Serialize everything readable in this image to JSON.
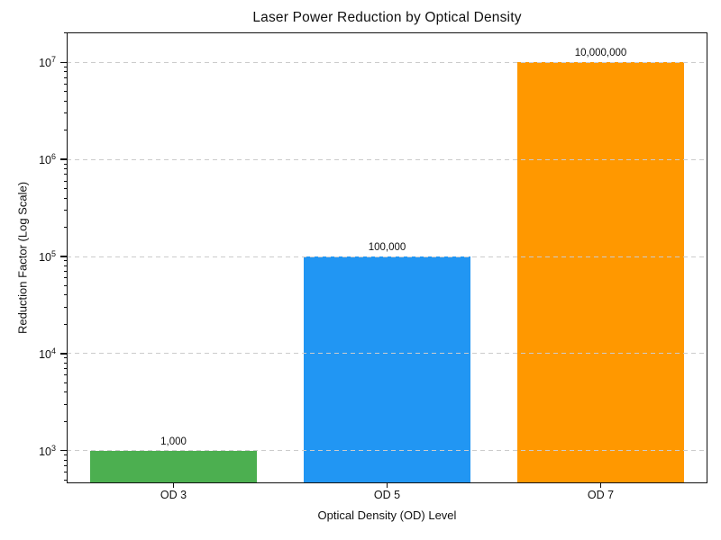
{
  "chart_data": {
    "type": "bar",
    "title": "Laser Power Reduction by Optical Density",
    "xlabel": "Optical Density (OD) Level",
    "ylabel": "Reduction Factor (Log Scale)",
    "categories": [
      "OD 3",
      "OD 5",
      "OD 7"
    ],
    "values": [
      1000,
      100000,
      10000000
    ],
    "value_labels": [
      "1,000",
      "100,000",
      "10,000,000"
    ],
    "bar_colors": [
      "#4caf50",
      "#2196f3",
      "#ff9800"
    ],
    "yscale": "log",
    "ylim": [
      460,
      20400000
    ],
    "yticks": [
      {
        "base": "10",
        "exp": "3",
        "value": 1000
      },
      {
        "base": "10",
        "exp": "4",
        "value": 10000
      },
      {
        "base": "10",
        "exp": "5",
        "value": 100000
      },
      {
        "base": "10",
        "exp": "6",
        "value": 1000000
      },
      {
        "base": "10",
        "exp": "7",
        "value": 10000000
      }
    ],
    "grid": "horizontal-dashed",
    "grid_color": "#cccccc",
    "axis_color": "#111111",
    "text_color": "#111111",
    "legend": "none",
    "bar_width_fraction": 0.78
  }
}
